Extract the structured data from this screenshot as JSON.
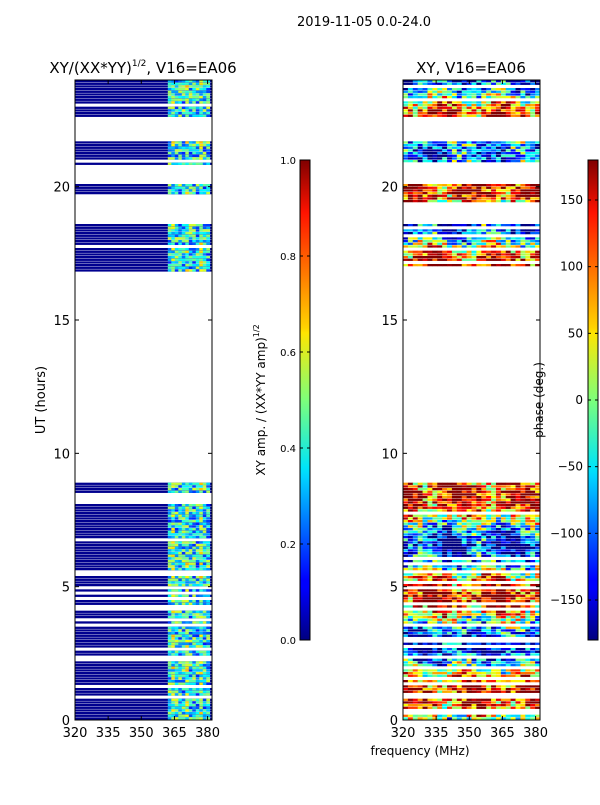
{
  "figure_title": "2019-11-05 0.0-24.0",
  "xlabel": "frequency (MHz)",
  "chart_data": [
    {
      "type": "heatmap",
      "title_main": "XY/(XX*YY)",
      "title_sup": "1/2",
      "title_tail": ", V16=EA06",
      "xlabel": "",
      "ylabel": "UT (hours)",
      "xlim": [
        320,
        382
      ],
      "ylim": [
        0,
        24
      ],
      "xticks": [
        "320",
        "335",
        "350",
        "365",
        "380"
      ],
      "xtick_values": [
        320,
        335,
        350,
        365,
        380
      ],
      "yticks": [
        "0",
        "5",
        "10",
        "15",
        "20"
      ],
      "ytick_values": [
        0,
        5,
        10,
        15,
        20
      ],
      "colorbar": {
        "label_main": "XY amp. / (XX*YY amp)",
        "label_sup": "1/2",
        "range": [
          0.0,
          1.0
        ],
        "ticks": [
          "0.0",
          "0.2",
          "0.4",
          "0.6",
          "0.8",
          "1.0"
        ],
        "tick_values": [
          0.0,
          0.2,
          0.4,
          0.6,
          0.8,
          1.0
        ]
      },
      "data_ut_intervals": [
        [
          0,
          8.9
        ],
        [
          16.8,
          18.6
        ],
        [
          19.4,
          20.1
        ],
        [
          20.8,
          21.7
        ],
        [
          22.6,
          24
        ]
      ],
      "band_mhz": [
        362,
        381
      ],
      "background_value": 0.0
    },
    {
      "type": "heatmap",
      "title": "XY, V16=EA06",
      "xlabel": "",
      "ylabel": "",
      "xlim": [
        320,
        382
      ],
      "ylim": [
        0,
        24
      ],
      "xticks": [
        "320",
        "335",
        "350",
        "365",
        "380"
      ],
      "xtick_values": [
        320,
        335,
        350,
        365,
        380
      ],
      "yticks": [
        "0",
        "5",
        "10",
        "15",
        "20"
      ],
      "ytick_values": [
        0,
        5,
        10,
        15,
        20
      ],
      "colorbar": {
        "label": "phase (deg.)",
        "range": [
          -180,
          180
        ],
        "ticks": [
          "−150",
          "−100",
          "−50",
          "0",
          "50",
          "100",
          "150"
        ],
        "tick_values": [
          -150,
          -100,
          -50,
          0,
          50,
          100,
          150
        ]
      },
      "data_ut_intervals": [
        [
          0,
          8.9
        ],
        [
          16.8,
          18.6
        ],
        [
          19.4,
          20.1
        ],
        [
          20.8,
          21.7
        ],
        [
          22.6,
          24
        ]
      ]
    }
  ]
}
